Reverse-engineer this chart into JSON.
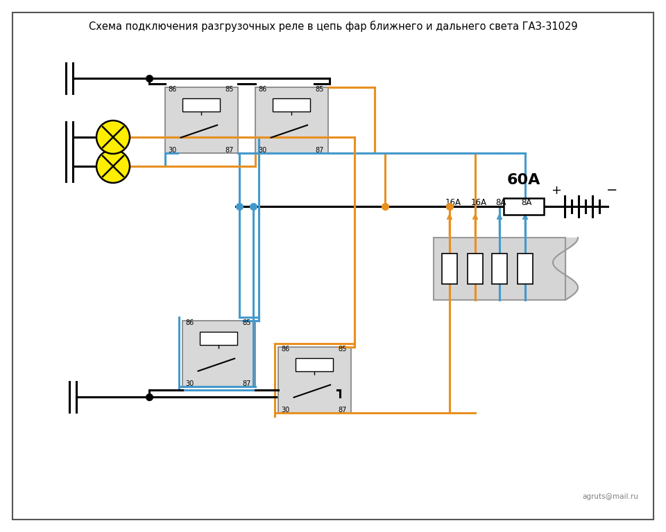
{
  "title": "Схема подключения разгрузочных реле в цепь фар ближнего и дальнего света ГАЗ-31029",
  "bg_color": "#ffffff",
  "black": "#000000",
  "blue": "#4499cc",
  "orange": "#e89020",
  "yellow": "#ffee00",
  "gray": "#cccccc",
  "dark_gray": "#999999",
  "fuse_label": "60А",
  "fuse_labels_top": [
    "16А",
    "16А",
    "8А",
    "8А"
  ],
  "credit": "agruts@mail.ru"
}
